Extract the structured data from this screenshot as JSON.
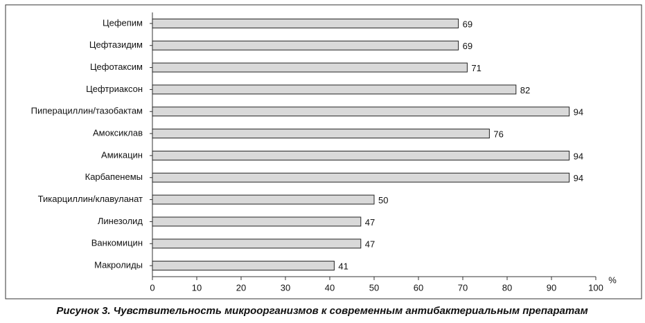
{
  "chart_data": {
    "type": "barh",
    "title": "Рисунок 3. Чувствительность микроорганизмов к современным антибактериальным препаратам",
    "xlabel": "%",
    "categories": [
      "Цефепим",
      "Цефтазидим",
      "Цефотаксим",
      "Цефтриаксон",
      "Пиперациллин/тазобактам",
      "Амоксиклав",
      "Амикацин",
      "Карбапенемы",
      "Тикарциллин/клавуланат",
      "Линезолид",
      "Ванкомицин",
      "Макролиды"
    ],
    "values": [
      69,
      69,
      71,
      82,
      94,
      76,
      94,
      94,
      50,
      47,
      47,
      41
    ],
    "color": "#d9d9d9",
    "xlim": [
      0,
      100
    ],
    "xticks": [
      0,
      10,
      20,
      30,
      40,
      50,
      60,
      70,
      80,
      90,
      100
    ]
  }
}
